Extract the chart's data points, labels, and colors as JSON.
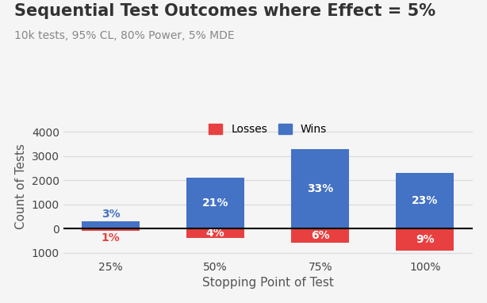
{
  "title": "Sequential Test Outcomes where Effect = 5%",
  "subtitle": "10k tests, 95% CL, 80% Power, 5% MDE",
  "xlabel": "Stopping Point of Test",
  "ylabel": "Count of Tests",
  "categories": [
    "25%",
    "50%",
    "75%",
    "100%"
  ],
  "wins": [
    300,
    2100,
    3300,
    2300
  ],
  "losses": [
    -100,
    -400,
    -600,
    -900
  ],
  "win_labels": [
    "3%",
    "21%",
    "33%",
    "23%"
  ],
  "loss_labels": [
    "1%",
    "4%",
    "6%",
    "9%"
  ],
  "win_label_inside": [
    false,
    true,
    true,
    true
  ],
  "loss_label_inside": [
    false,
    true,
    true,
    true
  ],
  "win_color": "#4472C4",
  "loss_color": "#E84040",
  "background_color": "#F5F5F5",
  "title_fontsize": 15,
  "subtitle_fontsize": 10,
  "label_fontsize": 10,
  "axis_label_fontsize": 11,
  "ylim": [
    -1200,
    4700
  ],
  "yticks": [
    -1000,
    0,
    1000,
    2000,
    3000,
    4000
  ],
  "legend_labels": [
    "Losses",
    "Wins"
  ],
  "bar_width": 0.55
}
